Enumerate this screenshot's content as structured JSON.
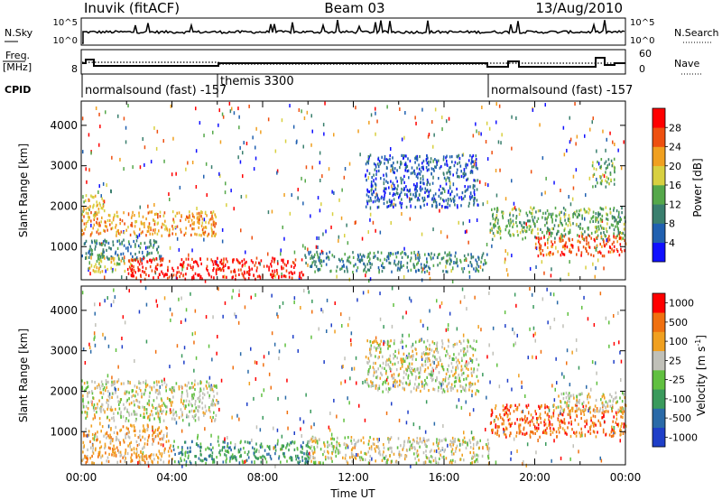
{
  "header": {
    "station": "Inuvik (fitACF)",
    "beam": "Beam 03",
    "date": "13/Aug/2010"
  },
  "aux_panels": {
    "nsky": {
      "label": "N.Sky",
      "right_label": "N.Search",
      "left_ticks": [
        "10^5",
        "10^0"
      ],
      "right_ticks": [
        "10^5",
        "10^0"
      ]
    },
    "freq": {
      "label_line1": "Freq.",
      "label_line2": "[MHz]",
      "right_label": "Nave",
      "left_ticks": [
        "8"
      ],
      "right_ticks": [
        "60",
        "0"
      ]
    },
    "cpid": {
      "label": "CPID",
      "segments": [
        {
          "name": "normalsound (fast) -157",
          "start_hour": 0,
          "end_hour": 6
        },
        {
          "name": "themis 3300",
          "start_hour": 6,
          "end_hour": 18
        },
        {
          "name": "normalsound (fast) -157",
          "start_hour": 18,
          "end_hour": 24
        }
      ]
    }
  },
  "chart_data": [
    {
      "type": "heatmap",
      "name": "power",
      "ylabel": "Slant Range [km]",
      "xlabel": "",
      "ylim": [
        180,
        4600
      ],
      "yticks": [
        1000,
        2000,
        3000,
        4000
      ],
      "xlim": [
        0,
        24
      ],
      "colorbar": {
        "label": "Power [dB]",
        "ticks": [
          "4",
          "8",
          "12",
          "16",
          "20",
          "24",
          "28"
        ],
        "colors": [
          "#1010ff",
          "#2060b0",
          "#3a7f6e",
          "#55a84a",
          "#d8d040",
          "#f0a020",
          "#ee5010",
          "#ff0000"
        ]
      },
      "echo_regions": [
        {
          "t0": 0.0,
          "t1": 6.0,
          "r0": 1300,
          "r1": 1900,
          "level": 5
        },
        {
          "t0": 0.0,
          "t1": 1.0,
          "r0": 1800,
          "r1": 2300,
          "level": 4
        },
        {
          "t0": 0.0,
          "t1": 3.5,
          "r0": 700,
          "r1": 1200,
          "level": 2
        },
        {
          "t0": 0.3,
          "t1": 2.2,
          "r0": 400,
          "r1": 750,
          "level": 4
        },
        {
          "t0": 2.0,
          "t1": 9.8,
          "r0": 230,
          "r1": 750,
          "level": 7
        },
        {
          "t0": 9.8,
          "t1": 18.0,
          "r0": 400,
          "r1": 900,
          "level": 2
        },
        {
          "t0": 12.5,
          "t1": 17.5,
          "r0": 2000,
          "r1": 3300,
          "level": 1
        },
        {
          "t0": 18.0,
          "t1": 24.0,
          "r0": 1200,
          "r1": 2000,
          "level": 3
        },
        {
          "t0": 20.0,
          "t1": 24.0,
          "r0": 800,
          "r1": 1300,
          "level": 6
        },
        {
          "t0": 22.5,
          "t1": 23.5,
          "r0": 2500,
          "r1": 3200,
          "level": 3
        }
      ]
    },
    {
      "type": "heatmap",
      "name": "velocity",
      "ylabel": "Slant Range [km]",
      "xlabel": "Time UT",
      "ylim": [
        180,
        4600
      ],
      "yticks": [
        1000,
        2000,
        3000,
        4000
      ],
      "xlim": [
        0,
        24
      ],
      "xticks": [
        "00:00",
        "04:00",
        "08:00",
        "12:00",
        "16:00",
        "20:00",
        "00:00"
      ],
      "colorbar": {
        "label": "Velocity [m s",
        "label_sup": "-1",
        "label_close": "]",
        "ticks": [
          "1000",
          "500",
          "100",
          "25",
          "-25",
          "-100",
          "-500",
          "-1000"
        ],
        "colors": [
          "#1f3fc8",
          "#2a6aa8",
          "#3a9a5c",
          "#60c040",
          "#c0c0b8",
          "#f0a020",
          "#f07010",
          "#ff0000"
        ]
      },
      "echo_regions": [
        {
          "t0": 0.0,
          "t1": 6.0,
          "r0": 1300,
          "r1": 2300,
          "level": 4
        },
        {
          "t0": 0.0,
          "t1": 4.0,
          "r0": 250,
          "r1": 1200,
          "level": 5
        },
        {
          "t0": 4.0,
          "t1": 10.0,
          "r0": 250,
          "r1": 800,
          "level": 2
        },
        {
          "t0": 10.0,
          "t1": 18.0,
          "r0": 250,
          "r1": 900,
          "level": 4
        },
        {
          "t0": 12.5,
          "t1": 17.5,
          "r0": 2000,
          "r1": 3300,
          "level": 4
        },
        {
          "t0": 18.0,
          "t1": 24.0,
          "r0": 900,
          "r1": 1700,
          "level": 6
        },
        {
          "t0": 21.0,
          "t1": 24.0,
          "r0": 1500,
          "r1": 2000,
          "level": 4
        }
      ]
    }
  ]
}
